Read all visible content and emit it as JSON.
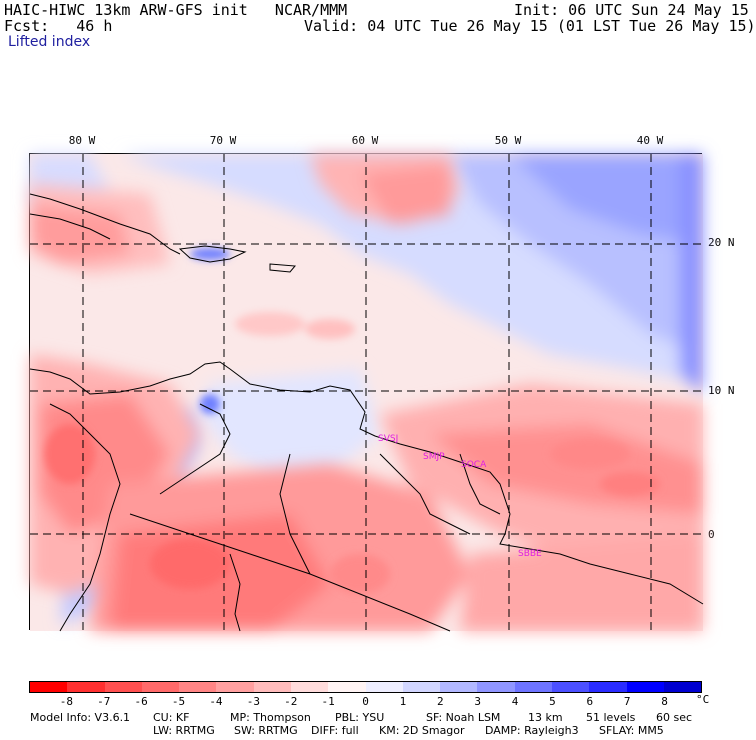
{
  "header": {
    "model_title": "HAIC-HIWC 13km ARW-GFS init   NCAR/MMM",
    "init_text": "Init: 06 UTC Sun 24 May 15",
    "fcst_label": "Fcst:   46 h",
    "valid_text": "Valid: 04 UTC Tue 26 May 15 (01 LST Tue 26 May 15)",
    "field_name": "Lifted index"
  },
  "map": {
    "lon_labels": [
      "80 W",
      "70 W",
      "60 W",
      "50 W",
      "40 W"
    ],
    "lat_labels": [
      "20 N",
      "10 N",
      "0"
    ],
    "stations": [
      "SVSJ",
      "SMJP",
      "SOCA",
      "SBBE"
    ]
  },
  "colorbar": {
    "unit": "°C",
    "labels": [
      "-8",
      "-7",
      "-6",
      "-5",
      "-4",
      "-3",
      "-2",
      "-1",
      "0",
      "1",
      "2",
      "3",
      "4",
      "5",
      "6",
      "7",
      "8"
    ],
    "colors": [
      "#ff0000",
      "#ff3030",
      "#ff5050",
      "#ff6a6a",
      "#ff8585",
      "#ffa0a0",
      "#ffbcbc",
      "#ffdcdc",
      "#fff4f4",
      "#eeeeff",
      "#d2d6ff",
      "#b2b8ff",
      "#9096ff",
      "#6e74ff",
      "#4c50ff",
      "#2a2cff",
      "#0000ff",
      "#0000d0"
    ]
  },
  "footer": {
    "line1": {
      "model_info": "Model Info: V3.6.1",
      "cu": "CU: KF",
      "mp": "MP: Thompson",
      "pbl": "PBL: YSU",
      "sf": "SF: Noah LSM",
      "res": "13 km",
      "levels": "51 levels",
      "dt": "60 sec"
    },
    "line2": {
      "lw": "LW: RRTMG",
      "sw": "SW: RRTMG",
      "diff": "DIFF: full",
      "km": "KM: 2D Smagor",
      "damp": "DAMP: Rayleigh3",
      "sflay": "SFLAY: MM5"
    }
  }
}
